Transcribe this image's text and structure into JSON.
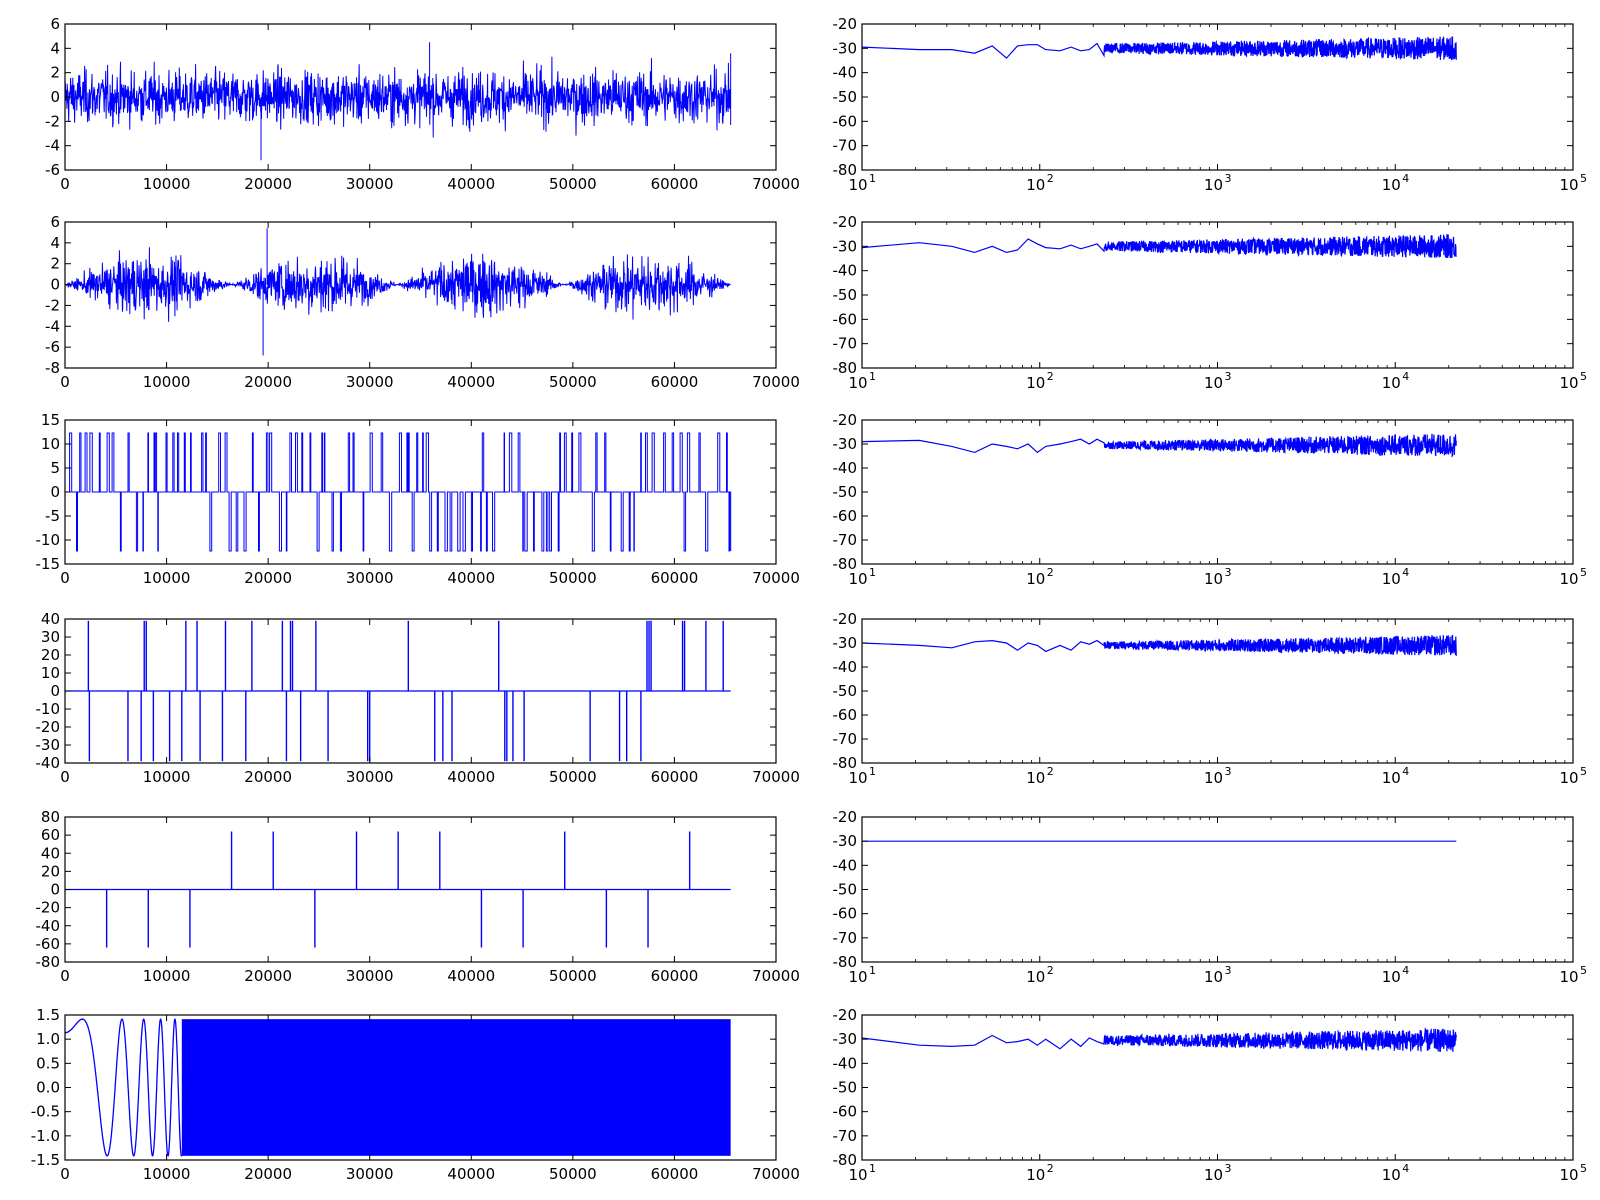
{
  "line_color": "#0000ff",
  "chart_data": [
    {
      "id": "r1-time",
      "type": "line",
      "signal": "gaussian-noise",
      "xlim": [
        0,
        70000
      ],
      "ylim": [
        -6,
        6
      ],
      "xticks": [
        0,
        10000,
        20000,
        30000,
        40000,
        50000,
        60000,
        70000
      ],
      "yticks": [
        -6,
        -4,
        -2,
        0,
        2,
        4,
        6
      ],
      "x_extent": [
        0,
        65536
      ],
      "amplitude": 3.5,
      "notable_values": [
        {
          "x": 19300,
          "y": -5.2
        },
        {
          "x": 35900,
          "y": 4.5
        }
      ]
    },
    {
      "id": "r1-spec",
      "type": "line",
      "xscale": "log",
      "xlim": [
        10,
        100000
      ],
      "ylim": [
        -80,
        -20
      ],
      "xticks": [
        10,
        100,
        1000,
        10000,
        100000
      ],
      "xtick_exponents": [
        "1",
        "2",
        "3",
        "4",
        "5"
      ],
      "yticks": [
        -80,
        -70,
        -60,
        -50,
        -40,
        -30,
        -20
      ],
      "x": [
        10,
        21,
        32,
        43,
        54,
        65,
        75,
        86,
        97,
        108,
        130,
        150,
        170,
        190,
        210,
        230
      ],
      "y": [
        -29.5,
        -30.5,
        -30.5,
        -32,
        -29,
        -34,
        -29,
        -28.5,
        -28.5,
        -30.5,
        -31,
        -29.5,
        -31,
        -30.5,
        -28,
        -33
      ],
      "noise_band": {
        "x_end": 22050,
        "center": -30,
        "spread_start": 2,
        "spread_end": 5
      }
    },
    {
      "id": "r2-time",
      "type": "line",
      "signal": "am-modulated-noise",
      "xlim": [
        0,
        70000
      ],
      "ylim": [
        -8,
        6
      ],
      "xticks": [
        0,
        10000,
        20000,
        30000,
        40000,
        50000,
        60000,
        70000
      ],
      "yticks": [
        -8,
        -6,
        -4,
        -2,
        0,
        2,
        4,
        6
      ],
      "x_extent": [
        0,
        65536
      ],
      "envelope_period": 16384,
      "envelope_peak": 4.5,
      "notable_values": [
        {
          "x": 19500,
          "y": -6.8
        },
        {
          "x": 19900,
          "y": 5.4
        }
      ]
    },
    {
      "id": "r2-spec",
      "type": "line",
      "xscale": "log",
      "xlim": [
        10,
        100000
      ],
      "ylim": [
        -80,
        -20
      ],
      "xticks": [
        10,
        100,
        1000,
        10000,
        100000
      ],
      "xtick_exponents": [
        "1",
        "2",
        "3",
        "4",
        "5"
      ],
      "yticks": [
        -80,
        -70,
        -60,
        -50,
        -40,
        -30,
        -20
      ],
      "x": [
        10,
        21,
        32,
        43,
        54,
        65,
        75,
        86,
        97,
        108,
        130,
        150,
        170,
        190,
        210,
        230
      ],
      "y": [
        -30.5,
        -28.5,
        -30,
        -32.5,
        -30,
        -32.5,
        -31.5,
        -27,
        -29,
        -30.5,
        -31,
        -29.5,
        -31,
        -30,
        -29,
        -32
      ],
      "noise_band": {
        "x_end": 22050,
        "center": -30,
        "spread_start": 2,
        "spread_end": 5
      }
    },
    {
      "id": "r3-time",
      "type": "line",
      "signal": "random-telegraph",
      "xlim": [
        0,
        70000
      ],
      "ylim": [
        -15,
        15
      ],
      "xticks": [
        0,
        10000,
        20000,
        30000,
        40000,
        50000,
        60000,
        70000
      ],
      "yticks": [
        -15,
        -10,
        -5,
        0,
        5,
        10,
        15
      ],
      "x_extent": [
        0,
        65536
      ],
      "levels": [
        -12.3,
        0,
        12.3
      ]
    },
    {
      "id": "r3-spec",
      "type": "line",
      "xscale": "log",
      "xlim": [
        10,
        100000
      ],
      "ylim": [
        -80,
        -20
      ],
      "xticks": [
        10,
        100,
        1000,
        10000,
        100000
      ],
      "xtick_exponents": [
        "1",
        "2",
        "3",
        "4",
        "5"
      ],
      "yticks": [
        -80,
        -70,
        -60,
        -50,
        -40,
        -30,
        -20
      ],
      "x": [
        10,
        21,
        32,
        43,
        54,
        65,
        75,
        86,
        97,
        108,
        130,
        150,
        170,
        190,
        210,
        230
      ],
      "y": [
        -29,
        -28.5,
        -31,
        -33.5,
        -30,
        -31,
        -32,
        -30,
        -33.5,
        -31,
        -30,
        -29,
        -28,
        -30,
        -28,
        -29.5
      ],
      "noise_band": {
        "x_end": 22050,
        "center": -30.5,
        "spread_start": 1.5,
        "spread_end": 5
      }
    },
    {
      "id": "r4-time",
      "type": "line",
      "signal": "sparse-impulses",
      "xlim": [
        0,
        70000
      ],
      "ylim": [
        -40,
        40
      ],
      "xticks": [
        0,
        10000,
        20000,
        30000,
        40000,
        50000,
        60000,
        70000
      ],
      "yticks": [
        -40,
        -30,
        -20,
        -10,
        0,
        10,
        20,
        30,
        40
      ],
      "x_extent": [
        0,
        65536
      ],
      "impulse_amplitude": 39,
      "positive_x": [
        2300,
        7800,
        8000,
        11900,
        13000,
        15800,
        18400,
        21400,
        22200,
        22400,
        24700,
        33800,
        42700,
        57300,
        57500,
        57700,
        60800,
        61000,
        63100,
        64800
      ],
      "negative_x": [
        2400,
        6200,
        7500,
        8700,
        10300,
        11500,
        13300,
        15500,
        17800,
        21800,
        23200,
        25900,
        29800,
        30000,
        36400,
        37200,
        38100,
        43300,
        43500,
        44100,
        45200,
        51700,
        54600,
        55300,
        56700
      ]
    },
    {
      "id": "r4-spec",
      "type": "line",
      "xscale": "log",
      "xlim": [
        10,
        100000
      ],
      "ylim": [
        -80,
        -20
      ],
      "xticks": [
        10,
        100,
        1000,
        10000,
        100000
      ],
      "xtick_exponents": [
        "1",
        "2",
        "3",
        "4",
        "5"
      ],
      "yticks": [
        -80,
        -70,
        -60,
        -50,
        -40,
        -30,
        -20
      ],
      "x": [
        10,
        21,
        32,
        43,
        54,
        65,
        75,
        86,
        97,
        108,
        130,
        150,
        170,
        190,
        210,
        230
      ],
      "y": [
        -30,
        -31,
        -32,
        -29.5,
        -29,
        -30,
        -33,
        -30,
        -31,
        -33.5,
        -31,
        -33,
        -29.5,
        -30.5,
        -29,
        -31
      ],
      "noise_band": {
        "x_end": 22050,
        "center": -31,
        "spread_start": 1.5,
        "spread_end": 4.5
      }
    },
    {
      "id": "r5-time",
      "type": "line",
      "signal": "periodic-impulses",
      "xlim": [
        0,
        70000
      ],
      "ylim": [
        -80,
        80
      ],
      "xticks": [
        0,
        10000,
        20000,
        30000,
        40000,
        50000,
        60000,
        70000
      ],
      "yticks": [
        -80,
        -60,
        -40,
        -20,
        0,
        20,
        40,
        60,
        80
      ],
      "x_extent": [
        0,
        65536
      ],
      "impulse_amplitude": 64,
      "positive_x": [
        16400,
        20500,
        28700,
        32800,
        36900,
        49200,
        61500
      ],
      "negative_x": [
        4100,
        8200,
        12300,
        24600,
        41000,
        45100,
        53300,
        57400
      ]
    },
    {
      "id": "r5-spec",
      "type": "line",
      "xscale": "log",
      "xlim": [
        10,
        100000
      ],
      "ylim": [
        -80,
        -20
      ],
      "xticks": [
        10,
        100,
        1000,
        10000,
        100000
      ],
      "xtick_exponents": [
        "1",
        "2",
        "3",
        "4",
        "5"
      ],
      "yticks": [
        -80,
        -70,
        -60,
        -50,
        -40,
        -30,
        -20
      ],
      "x": [
        10,
        22050
      ],
      "y": [
        -30,
        -30
      ]
    },
    {
      "id": "r6-time",
      "type": "line",
      "signal": "chirp",
      "xlim": [
        0,
        70000
      ],
      "ylim": [
        -1.5,
        1.5
      ],
      "xticks": [
        0,
        10000,
        20000,
        30000,
        40000,
        50000,
        60000,
        70000
      ],
      "yticks": [
        -1.5,
        -1.0,
        -0.5,
        0.0,
        0.5,
        1.0,
        1.5
      ],
      "x_extent": [
        0,
        65536
      ],
      "amplitude": 1.414,
      "phase0": 0.93
    },
    {
      "id": "r6-spec",
      "type": "line",
      "xscale": "log",
      "xlim": [
        10,
        100000
      ],
      "ylim": [
        -80,
        -20
      ],
      "xticks": [
        10,
        100,
        1000,
        10000,
        100000
      ],
      "xtick_exponents": [
        "1",
        "2",
        "3",
        "4",
        "5"
      ],
      "yticks": [
        -80,
        -70,
        -60,
        -50,
        -40,
        -30,
        -20
      ],
      "x": [
        10,
        21,
        32,
        43,
        54,
        65,
        75,
        86,
        97,
        108,
        130,
        150,
        170,
        190,
        210,
        230
      ],
      "y": [
        -29.5,
        -32.5,
        -33,
        -32.5,
        -28.5,
        -31.5,
        -31,
        -30,
        -32.5,
        -30,
        -34,
        -30,
        -33,
        -29.5,
        -31,
        -32
      ],
      "noise_band": {
        "x_end": 22050,
        "center": -30.5,
        "spread_start": 2,
        "spread_end": 5
      }
    }
  ]
}
